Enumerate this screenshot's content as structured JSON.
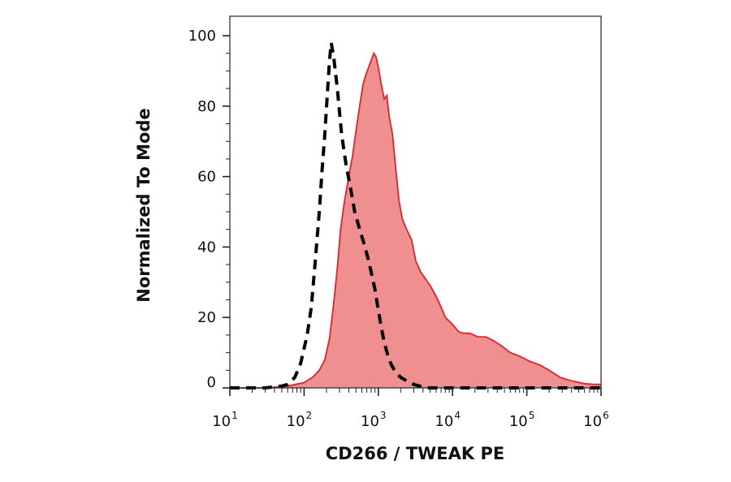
{
  "chart_data": {
    "type": "area",
    "title": "",
    "xlabel": "CD266 / TWEAK PE",
    "ylabel": "Normalized To Mode",
    "x_scale": "log",
    "xlim": [
      10,
      1000000
    ],
    "ylim": [
      0,
      100
    ],
    "x_ticks": [
      {
        "base": "10",
        "exp": "1",
        "value": 10
      },
      {
        "base": "10",
        "exp": "2",
        "value": 100
      },
      {
        "base": "10",
        "exp": "3",
        "value": 1000
      },
      {
        "base": "10",
        "exp": "4",
        "value": 10000
      },
      {
        "base": "10",
        "exp": "5",
        "value": 100000
      },
      {
        "base": "10",
        "exp": "6",
        "value": 1000000
      }
    ],
    "y_ticks": [
      "0",
      "20",
      "40",
      "60",
      "80",
      "100"
    ],
    "y_tick_values": [
      0,
      20,
      40,
      60,
      80,
      100
    ],
    "grid": false,
    "series": [
      {
        "style": "filled-solid",
        "color": "#d9252b",
        "fill": "#f08f8f",
        "points": [
          [
            10,
            0
          ],
          [
            30,
            0
          ],
          [
            60,
            0.5
          ],
          [
            100,
            1.5
          ],
          [
            130,
            3
          ],
          [
            160,
            5
          ],
          [
            190,
            8
          ],
          [
            220,
            14
          ],
          [
            250,
            24
          ],
          [
            280,
            34
          ],
          [
            310,
            45
          ],
          [
            350,
            53
          ],
          [
            400,
            60
          ],
          [
            450,
            66
          ],
          [
            500,
            73
          ],
          [
            560,
            80
          ],
          [
            620,
            86
          ],
          [
            680,
            89
          ],
          [
            740,
            91
          ],
          [
            800,
            93
          ],
          [
            870,
            95
          ],
          [
            930,
            94
          ],
          [
            1000,
            91
          ],
          [
            1100,
            86
          ],
          [
            1200,
            82
          ],
          [
            1300,
            83
          ],
          [
            1400,
            77
          ],
          [
            1550,
            72
          ],
          [
            1700,
            63
          ],
          [
            1900,
            53
          ],
          [
            2100,
            48
          ],
          [
            2400,
            45
          ],
          [
            2800,
            42
          ],
          [
            3200,
            36
          ],
          [
            3700,
            33
          ],
          [
            4300,
            31
          ],
          [
            5000,
            29
          ],
          [
            6000,
            26
          ],
          [
            7000,
            23
          ],
          [
            8000,
            20
          ],
          [
            10000,
            18
          ],
          [
            12000,
            16
          ],
          [
            14000,
            15.5
          ],
          [
            17000,
            15.5
          ],
          [
            22000,
            14.5
          ],
          [
            28000,
            14.5
          ],
          [
            35000,
            13.5
          ],
          [
            45000,
            12
          ],
          [
            60000,
            10
          ],
          [
            80000,
            9
          ],
          [
            110000,
            7.5
          ],
          [
            150000,
            6.5
          ],
          [
            200000,
            5
          ],
          [
            280000,
            3
          ],
          [
            400000,
            2
          ],
          [
            600000,
            1.2
          ],
          [
            800000,
            1
          ],
          [
            1000000,
            1
          ]
        ]
      },
      {
        "style": "dashed",
        "color": "#000000",
        "points": [
          [
            10,
            0
          ],
          [
            30,
            0
          ],
          [
            50,
            0.5
          ],
          [
            60,
            1
          ],
          [
            75,
            3
          ],
          [
            90,
            7
          ],
          [
            110,
            15
          ],
          [
            125,
            23
          ],
          [
            140,
            35
          ],
          [
            160,
            50
          ],
          [
            175,
            62
          ],
          [
            190,
            72
          ],
          [
            205,
            83
          ],
          [
            220,
            93
          ],
          [
            232,
            98
          ],
          [
            250,
            94
          ],
          [
            280,
            85
          ],
          [
            320,
            72
          ],
          [
            370,
            63
          ],
          [
            420,
            57
          ],
          [
            480,
            50
          ],
          [
            560,
            45
          ],
          [
            640,
            41
          ],
          [
            720,
            37
          ],
          [
            800,
            33
          ],
          [
            900,
            28
          ],
          [
            1000,
            22
          ],
          [
            1100,
            17
          ],
          [
            1200,
            13
          ],
          [
            1350,
            9
          ],
          [
            1500,
            6.5
          ],
          [
            1700,
            4.5
          ],
          [
            2000,
            3
          ],
          [
            2400,
            2
          ],
          [
            3000,
            1
          ],
          [
            3600,
            0.5
          ],
          [
            4500,
            0
          ],
          [
            10000,
            0
          ],
          [
            1000000,
            0
          ]
        ]
      }
    ]
  }
}
